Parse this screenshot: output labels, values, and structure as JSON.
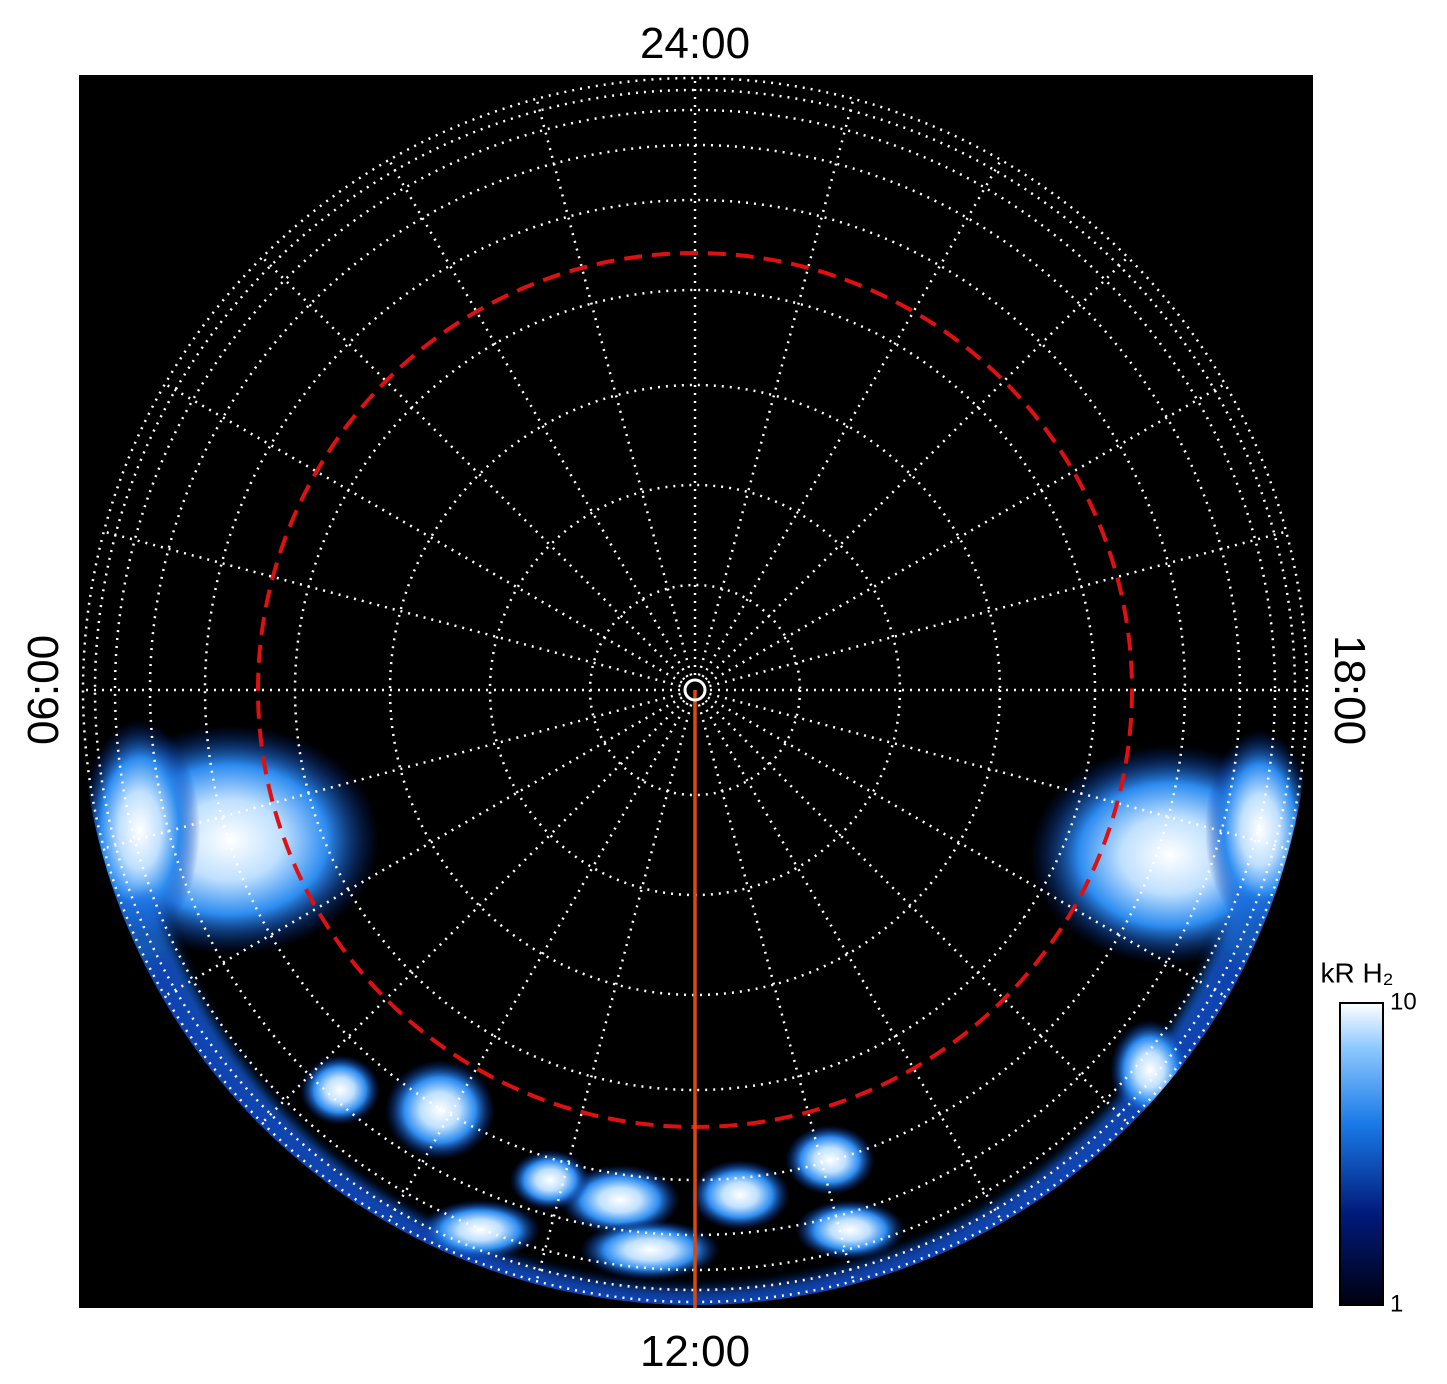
{
  "chart_data": {
    "type": "polar-image",
    "local_time_labels": {
      "top": "24:00",
      "left": "06:00",
      "bottom": "12:00",
      "right": "18:00"
    },
    "colorbar": {
      "label": "kR H₂",
      "lim": [
        1,
        10
      ],
      "ticks": [
        1,
        10
      ],
      "log": true
    }
  }
}
